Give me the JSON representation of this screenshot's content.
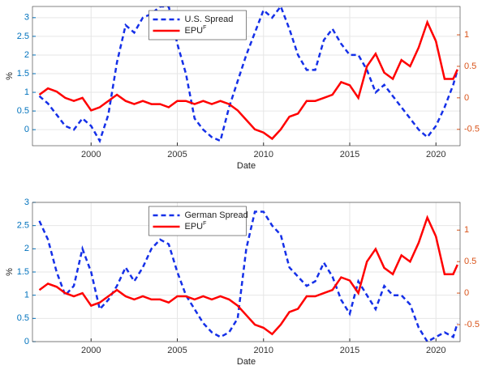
{
  "chart_data": [
    {
      "type": "line",
      "x_label": "Date",
      "y_label": "%",
      "x": [
        1997,
        1997.5,
        1998,
        1998.5,
        1999,
        1999.5,
        2000,
        2000.5,
        2001,
        2001.5,
        2002,
        2002.5,
        2003,
        2003.5,
        2004,
        2004.5,
        2005,
        2005.5,
        2006,
        2006.5,
        2007,
        2007.5,
        2008,
        2008.5,
        2009,
        2009.5,
        2010,
        2010.5,
        2011,
        2011.5,
        2012,
        2012.5,
        2013,
        2013.5,
        2014,
        2014.5,
        2015,
        2015.5,
        2016,
        2016.5,
        2017,
        2017.5,
        2018,
        2018.5,
        2019,
        2019.5,
        2020,
        2020.5,
        2021,
        2021.25
      ],
      "xlim": [
        1996.6,
        2021.4
      ],
      "xticks": [
        2000,
        2005,
        2010,
        2015,
        2020
      ],
      "ylim": [
        -0.43,
        3.3
      ],
      "yticks": [
        0,
        0.5,
        1,
        1.5,
        2,
        2.5,
        3
      ],
      "y2lim": [
        -0.76,
        1.45
      ],
      "y2ticks": [
        -0.5,
        0,
        0.5,
        1
      ],
      "grid": true,
      "legend": "upper center",
      "series": [
        {
          "name": "U.S. Spread",
          "color": "#1530e8",
          "style": "dashed",
          "values": [
            0.9,
            0.7,
            0.4,
            0.1,
            0.0,
            0.3,
            0.1,
            -0.3,
            0.4,
            1.8,
            2.8,
            2.6,
            3.0,
            3.1,
            3.3,
            3.3,
            2.3,
            1.5,
            0.3,
            0.0,
            -0.2,
            -0.3,
            0.6,
            1.3,
            2.0,
            2.6,
            3.2,
            3.0,
            3.3,
            2.7,
            2.0,
            1.6,
            1.6,
            2.4,
            2.7,
            2.3,
            2.0,
            2.0,
            1.6,
            1.0,
            1.2,
            0.9,
            0.6,
            0.3,
            0.0,
            -0.2,
            0.1,
            0.6,
            1.2,
            1.6
          ]
        },
        {
          "name": "EPU",
          "superscript": "F",
          "color": "#ff0000",
          "style": "solid",
          "axis": "y2",
          "values": [
            0.05,
            0.15,
            0.1,
            0.0,
            -0.05,
            0.0,
            -0.2,
            -0.15,
            -0.05,
            0.05,
            -0.05,
            -0.1,
            -0.05,
            -0.1,
            -0.1,
            -0.15,
            -0.05,
            -0.05,
            -0.1,
            -0.05,
            -0.1,
            -0.05,
            -0.1,
            -0.2,
            -0.35,
            -0.5,
            -0.55,
            -0.65,
            -0.5,
            -0.3,
            -0.25,
            -0.05,
            -0.05,
            0.0,
            0.05,
            0.25,
            0.2,
            0.0,
            0.5,
            0.7,
            0.4,
            0.3,
            0.6,
            0.5,
            0.8,
            1.2,
            0.9,
            0.3,
            0.3,
            0.45
          ]
        }
      ]
    },
    {
      "type": "line",
      "x_label": "Date",
      "y_label": "%",
      "x": [
        1997,
        1997.5,
        1998,
        1998.5,
        1999,
        1999.5,
        2000,
        2000.5,
        2001,
        2001.5,
        2002,
        2002.5,
        2003,
        2003.5,
        2004,
        2004.5,
        2005,
        2005.5,
        2006,
        2006.5,
        2007,
        2007.5,
        2008,
        2008.5,
        2009,
        2009.5,
        2010,
        2010.5,
        2011,
        2011.5,
        2012,
        2012.5,
        2013,
        2013.5,
        2014,
        2014.5,
        2015,
        2015.5,
        2016,
        2016.5,
        2017,
        2017.5,
        2018,
        2018.5,
        2019,
        2019.5,
        2020,
        2020.5,
        2021,
        2021.25
      ],
      "xlim": [
        1996.6,
        2021.4
      ],
      "xticks": [
        2000,
        2005,
        2010,
        2015,
        2020
      ],
      "ylim": [
        0,
        3
      ],
      "yticks": [
        0,
        0.5,
        1,
        1.5,
        2,
        2.5,
        3
      ],
      "y2lim": [
        -0.77,
        1.44
      ],
      "y2ticks": [
        -0.5,
        0,
        0.5,
        1
      ],
      "grid": true,
      "legend": "upper center",
      "series": [
        {
          "name": "German Spread",
          "color": "#1530e8",
          "style": "dashed",
          "values": [
            2.6,
            2.2,
            1.5,
            1.0,
            1.2,
            2.0,
            1.5,
            0.7,
            0.9,
            1.2,
            1.6,
            1.3,
            1.6,
            2.0,
            2.2,
            2.1,
            1.5,
            1.0,
            0.7,
            0.4,
            0.2,
            0.1,
            0.2,
            0.5,
            2.0,
            2.8,
            2.8,
            2.5,
            2.3,
            1.6,
            1.4,
            1.2,
            1.3,
            1.7,
            1.4,
            0.9,
            0.6,
            1.3,
            1.0,
            0.7,
            1.2,
            1.0,
            1.0,
            0.8,
            0.3,
            0.0,
            0.1,
            0.2,
            0.1,
            0.4
          ]
        },
        {
          "name": "EPU",
          "superscript": "F",
          "color": "#ff0000",
          "style": "solid",
          "axis": "y2",
          "values": [
            0.05,
            0.15,
            0.1,
            0.0,
            -0.05,
            0.0,
            -0.2,
            -0.15,
            -0.05,
            0.05,
            -0.05,
            -0.1,
            -0.05,
            -0.1,
            -0.1,
            -0.15,
            -0.05,
            -0.05,
            -0.1,
            -0.05,
            -0.1,
            -0.05,
            -0.1,
            -0.2,
            -0.35,
            -0.5,
            -0.55,
            -0.65,
            -0.5,
            -0.3,
            -0.25,
            -0.05,
            -0.05,
            0.0,
            0.05,
            0.25,
            0.2,
            0.0,
            0.5,
            0.7,
            0.4,
            0.3,
            0.6,
            0.5,
            0.8,
            1.2,
            0.9,
            0.3,
            0.3,
            0.45
          ]
        }
      ]
    }
  ]
}
